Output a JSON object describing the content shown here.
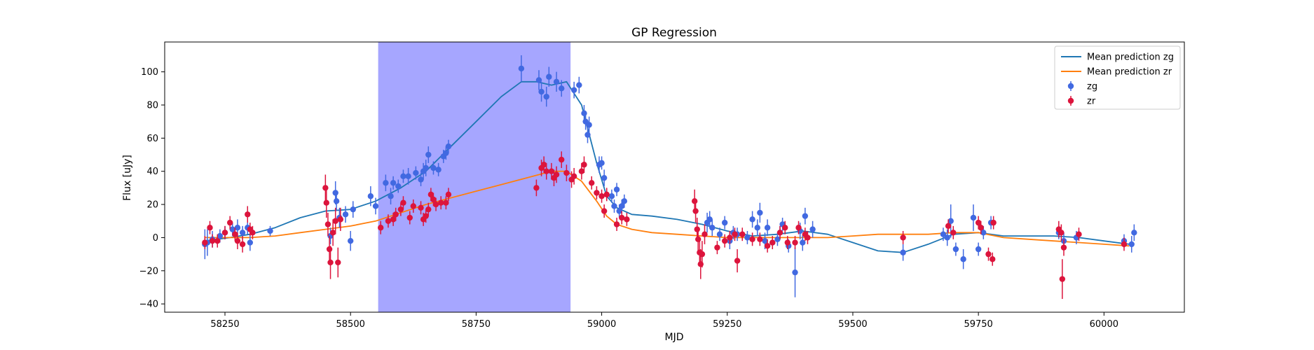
{
  "chart_data": {
    "type": "scatter",
    "title": "GP Regression",
    "xlabel": "MJD",
    "ylabel": "Flux [uJy]",
    "xlim": [
      58130,
      60160
    ],
    "ylim": [
      -45,
      118
    ],
    "xticks": [
      58250,
      58500,
      58750,
      59000,
      59250,
      59500,
      59750,
      60000
    ],
    "yticks": [
      -40,
      -20,
      0,
      20,
      40,
      60,
      80,
      100
    ],
    "grid": false,
    "legend_position": "top-right",
    "shaded_region": {
      "x_start": 58555,
      "x_end": 58938,
      "color": "#a6a6ff"
    },
    "series": [
      {
        "name": "Mean prediction zg",
        "kind": "line",
        "color": "#1f77b4",
        "x": [
          58210,
          58260,
          58300,
          58350,
          58400,
          58450,
          58500,
          58550,
          58600,
          58650,
          58700,
          58750,
          58800,
          58840,
          58870,
          58900,
          58930,
          58960,
          58990,
          59010,
          59030,
          59060,
          59100,
          59150,
          59200,
          59250,
          59300,
          59350,
          59400,
          59450,
          59500,
          59550,
          59600,
          59650,
          59700,
          59750,
          59800,
          59850,
          59900,
          59950,
          60000,
          60050
        ],
        "y": [
          -2,
          0,
          2,
          6,
          12,
          16,
          17,
          22,
          30,
          40,
          55,
          70,
          85,
          94,
          94,
          92,
          94,
          80,
          45,
          25,
          18,
          14,
          13,
          11,
          8,
          4,
          1,
          2,
          4,
          2,
          -3,
          -8,
          -9,
          -4,
          2,
          3,
          1,
          1,
          1,
          0,
          -2,
          -4
        ]
      },
      {
        "name": "Mean prediction zr",
        "kind": "line",
        "color": "#ff7f0e",
        "x": [
          58210,
          58260,
          58300,
          58350,
          58400,
          58450,
          58500,
          58550,
          58600,
          58650,
          58700,
          58750,
          58800,
          58850,
          58900,
          58930,
          58960,
          58990,
          59010,
          59030,
          59060,
          59100,
          59150,
          59200,
          59250,
          59300,
          59350,
          59400,
          59450,
          59500,
          59550,
          59600,
          59650,
          59700,
          59750,
          59800,
          59850,
          59900,
          59950,
          60000,
          60050
        ],
        "y": [
          0,
          0,
          0,
          1,
          3,
          5,
          7,
          10,
          15,
          20,
          24,
          28,
          32,
          36,
          40,
          40,
          34,
          22,
          13,
          8,
          5,
          3,
          2,
          1,
          0,
          0,
          0,
          0,
          0,
          1,
          2,
          2,
          2,
          3,
          3,
          0,
          -1,
          -2,
          -3,
          -4,
          -5
        ]
      },
      {
        "name": "zg",
        "kind": "errorbar",
        "color": "#4169e1",
        "points": [
          [
            58210,
            -4,
            9
          ],
          [
            58215,
            -3,
            8
          ],
          [
            58225,
            -1,
            5
          ],
          [
            58240,
            1,
            4
          ],
          [
            58250,
            3,
            4
          ],
          [
            58265,
            5,
            4
          ],
          [
            58275,
            6,
            5
          ],
          [
            58285,
            3,
            4
          ],
          [
            58295,
            6,
            4
          ],
          [
            58300,
            -3,
            5
          ],
          [
            58340,
            4,
            3
          ],
          [
            58460,
            1,
            5
          ],
          [
            58470,
            27,
            7
          ],
          [
            58472,
            22,
            6
          ],
          [
            58478,
            12,
            6
          ],
          [
            58490,
            14,
            5
          ],
          [
            58500,
            -2,
            6
          ],
          [
            58505,
            17,
            5
          ],
          [
            58540,
            25,
            6
          ],
          [
            58550,
            19,
            5
          ],
          [
            58570,
            33,
            5
          ],
          [
            58580,
            25,
            5
          ],
          [
            58585,
            33,
            4
          ],
          [
            58595,
            31,
            4
          ],
          [
            58605,
            37,
            4
          ],
          [
            58615,
            37,
            5
          ],
          [
            58630,
            39,
            4
          ],
          [
            58640,
            35,
            4
          ],
          [
            58645,
            40,
            5
          ],
          [
            58650,
            42,
            5
          ],
          [
            58655,
            50,
            5
          ],
          [
            58665,
            42,
            4
          ],
          [
            58675,
            41,
            4
          ],
          [
            58685,
            49,
            4
          ],
          [
            58690,
            51,
            4
          ],
          [
            58695,
            55,
            4
          ],
          [
            58840,
            102,
            8
          ],
          [
            58875,
            95,
            6
          ],
          [
            58880,
            88,
            6
          ],
          [
            58890,
            85,
            6
          ],
          [
            58895,
            97,
            6
          ],
          [
            58910,
            94,
            6
          ],
          [
            58920,
            90,
            5
          ],
          [
            58945,
            89,
            5
          ],
          [
            58955,
            92,
            5
          ],
          [
            58965,
            75,
            5
          ],
          [
            58968,
            70,
            5
          ],
          [
            58972,
            62,
            5
          ],
          [
            58975,
            68,
            5
          ],
          [
            58995,
            44,
            5
          ],
          [
            59000,
            45,
            4
          ],
          [
            59005,
            36,
            5
          ],
          [
            59020,
            25,
            4
          ],
          [
            59025,
            19,
            4
          ],
          [
            59030,
            29,
            4
          ],
          [
            59035,
            16,
            4
          ],
          [
            59040,
            19,
            4
          ],
          [
            59045,
            22,
            4
          ],
          [
            59210,
            9,
            6
          ],
          [
            59215,
            11,
            5
          ],
          [
            59220,
            6,
            5
          ],
          [
            59235,
            2,
            4
          ],
          [
            59245,
            9,
            4
          ],
          [
            59255,
            -2,
            5
          ],
          [
            59262,
            3,
            4
          ],
          [
            59270,
            2,
            4
          ],
          [
            59290,
            0,
            4
          ],
          [
            59300,
            11,
            5
          ],
          [
            59310,
            6,
            5
          ],
          [
            59315,
            15,
            6
          ],
          [
            59325,
            -2,
            5
          ],
          [
            59330,
            6,
            5
          ],
          [
            59340,
            -3,
            4
          ],
          [
            59350,
            -1,
            4
          ],
          [
            59355,
            3,
            4
          ],
          [
            59360,
            8,
            4
          ],
          [
            59372,
            -5,
            4
          ],
          [
            59385,
            -21,
            15
          ],
          [
            59395,
            4,
            5
          ],
          [
            59400,
            -3,
            5
          ],
          [
            59405,
            13,
            5
          ],
          [
            59420,
            5,
            5
          ],
          [
            59600,
            -9,
            5
          ],
          [
            59680,
            2,
            4
          ],
          [
            59688,
            0,
            5
          ],
          [
            59695,
            10,
            10
          ],
          [
            59705,
            -7,
            4
          ],
          [
            59720,
            -13,
            6
          ],
          [
            59740,
            12,
            8
          ],
          [
            59750,
            -7,
            4
          ],
          [
            59760,
            3,
            4
          ],
          [
            59775,
            9,
            4
          ],
          [
            59910,
            3,
            4
          ],
          [
            59920,
            -2,
            5
          ],
          [
            59945,
            0,
            4
          ],
          [
            60040,
            -2,
            4
          ],
          [
            60055,
            -4,
            5
          ],
          [
            60060,
            3,
            5
          ]
        ]
      },
      {
        "name": "zr",
        "kind": "errorbar",
        "color": "#dc143c",
        "points": [
          [
            58210,
            -3,
            4
          ],
          [
            58220,
            6,
            4
          ],
          [
            58225,
            -2,
            4
          ],
          [
            58235,
            -2,
            4
          ],
          [
            58250,
            3,
            4
          ],
          [
            58260,
            9,
            4
          ],
          [
            58270,
            2,
            4
          ],
          [
            58275,
            -2,
            5
          ],
          [
            58285,
            -4,
            5
          ],
          [
            58295,
            14,
            5
          ],
          [
            58300,
            5,
            4
          ],
          [
            58305,
            3,
            4
          ],
          [
            58450,
            30,
            8
          ],
          [
            58452,
            21,
            9
          ],
          [
            58455,
            8,
            7
          ],
          [
            58458,
            -7,
            8
          ],
          [
            58460,
            -15,
            10
          ],
          [
            58465,
            3,
            8
          ],
          [
            58470,
            10,
            8
          ],
          [
            58475,
            -15,
            9
          ],
          [
            58480,
            11,
            7
          ],
          [
            58560,
            6,
            4
          ],
          [
            58575,
            10,
            4
          ],
          [
            58585,
            11,
            4
          ],
          [
            58590,
            14,
            4
          ],
          [
            58600,
            17,
            4
          ],
          [
            58605,
            21,
            4
          ],
          [
            58618,
            12,
            4
          ],
          [
            58625,
            19,
            4
          ],
          [
            58640,
            18,
            4
          ],
          [
            58645,
            11,
            4
          ],
          [
            58650,
            13,
            4
          ],
          [
            58655,
            17,
            4
          ],
          [
            58660,
            26,
            4
          ],
          [
            58665,
            23,
            4
          ],
          [
            58670,
            20,
            4
          ],
          [
            58680,
            21,
            4
          ],
          [
            58690,
            21,
            4
          ],
          [
            58695,
            26,
            4
          ],
          [
            58870,
            30,
            5
          ],
          [
            58880,
            42,
            5
          ],
          [
            58885,
            44,
            5
          ],
          [
            58890,
            40,
            5
          ],
          [
            58900,
            40,
            5
          ],
          [
            58905,
            36,
            5
          ],
          [
            58910,
            38,
            5
          ],
          [
            58920,
            47,
            5
          ],
          [
            58930,
            39,
            5
          ],
          [
            58940,
            35,
            5
          ],
          [
            58945,
            37,
            5
          ],
          [
            58960,
            40,
            5
          ],
          [
            58965,
            44,
            5
          ],
          [
            58980,
            33,
            4
          ],
          [
            58990,
            27,
            4
          ],
          [
            59000,
            25,
            4
          ],
          [
            59005,
            16,
            4
          ],
          [
            59010,
            26,
            4
          ],
          [
            59030,
            8,
            4
          ],
          [
            59040,
            12,
            4
          ],
          [
            59050,
            11,
            4
          ],
          [
            59185,
            22,
            7
          ],
          [
            59187,
            16,
            7
          ],
          [
            59190,
            5,
            7
          ],
          [
            59192,
            -1,
            7
          ],
          [
            59195,
            -9,
            8
          ],
          [
            59197,
            -16,
            9
          ],
          [
            59200,
            -10,
            8
          ],
          [
            59205,
            2,
            6
          ],
          [
            59230,
            -6,
            4
          ],
          [
            59245,
            -2,
            4
          ],
          [
            59255,
            0,
            4
          ],
          [
            59265,
            2,
            4
          ],
          [
            59270,
            -14,
            7
          ],
          [
            59280,
            2,
            4
          ],
          [
            59300,
            -1,
            4
          ],
          [
            59315,
            -1,
            4
          ],
          [
            59330,
            -5,
            4
          ],
          [
            59340,
            -3,
            4
          ],
          [
            59355,
            3,
            4
          ],
          [
            59365,
            6,
            4
          ],
          [
            59370,
            -3,
            4
          ],
          [
            59385,
            -3,
            4
          ],
          [
            59392,
            6,
            4
          ],
          [
            59405,
            2,
            4
          ],
          [
            59410,
            0,
            4
          ],
          [
            59600,
            0,
            4
          ],
          [
            59690,
            7,
            4
          ],
          [
            59700,
            3,
            4
          ],
          [
            59750,
            9,
            4
          ],
          [
            59755,
            6,
            4
          ],
          [
            59770,
            -10,
            4
          ],
          [
            59778,
            -13,
            4
          ],
          [
            59780,
            9,
            4
          ],
          [
            59910,
            5,
            5
          ],
          [
            59915,
            3,
            5
          ],
          [
            59917,
            -25,
            12
          ],
          [
            59920,
            -6,
            5
          ],
          [
            59950,
            2,
            4
          ],
          [
            60040,
            -4,
            4
          ]
        ]
      }
    ]
  }
}
